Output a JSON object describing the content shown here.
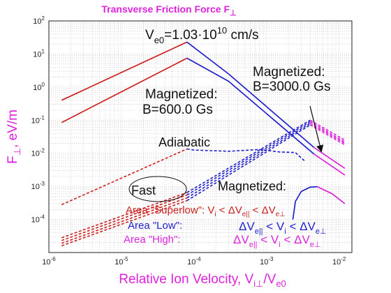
{
  "chart_data": {
    "type": "line",
    "title": {
      "main": "Transverse Friction Force F",
      "sub": "⊥"
    },
    "xlabel": {
      "main": "Relative Ion Velocity, V",
      "sub1": "i⊥",
      "mid": "/V",
      "sub2": "e0"
    },
    "ylabel": {
      "main": "F",
      "sub": "⊥",
      "rest": ", eV/m"
    },
    "x_scale": "log",
    "y_scale": "log",
    "xlim": [
      1e-06,
      0.015
    ],
    "ylim": [
      1e-05,
      100
    ],
    "grid": true,
    "x_tick_exponents": [
      -6,
      -5,
      -4,
      -3,
      -2
    ],
    "y_tick_exponents": [
      -4,
      -3,
      -2,
      -1,
      0,
      1,
      2
    ],
    "tick_base": "10",
    "colors": {
      "red": "#cc1f1f",
      "blue": "#1f1fcc",
      "magenta": "#dd22dd"
    },
    "series": [
      {
        "color": "red",
        "dash": false,
        "x": [
          1.5e-06,
          8e-05
        ],
        "y": [
          0.4,
          23
        ]
      },
      {
        "color": "red",
        "dash": false,
        "x": [
          1.5e-06,
          8e-05
        ],
        "y": [
          0.085,
          7.5
        ]
      },
      {
        "color": "blue",
        "dash": false,
        "x": [
          8e-05,
          0.0003,
          0.0045
        ],
        "y": [
          23,
          2.5,
          0.015
        ]
      },
      {
        "color": "blue",
        "dash": false,
        "x": [
          8e-05,
          0.0003,
          0.0045
        ],
        "y": [
          7.5,
          1.5,
          0.0095
        ]
      },
      {
        "color": "magenta",
        "dash": false,
        "x": [
          0.0045,
          0.012
        ],
        "y": [
          0.015,
          0.0035
        ]
      },
      {
        "color": "magenta",
        "dash": false,
        "x": [
          0.0045,
          0.012
        ],
        "y": [
          0.0095,
          0.0022
        ]
      },
      {
        "color": "red",
        "dash": true,
        "x": [
          1.5e-06,
          8e-05
        ],
        "y": [
          0.00028,
          0.0135
        ]
      },
      {
        "color": "blue",
        "dash": true,
        "x": [
          8e-05,
          0.0001,
          0.0003,
          0.0008,
          0.0015,
          0.0025,
          0.0033
        ],
        "y": [
          0.0135,
          0.0125,
          0.0115,
          0.013,
          0.011,
          0.0105,
          0.006
        ]
      },
      {
        "color": "red",
        "dash": true,
        "x": [
          1.5e-06,
          8e-05
        ],
        "y": [
          2.8e-05,
          0.00065
        ]
      },
      {
        "color": "red",
        "dash": true,
        "x": [
          1.5e-06,
          8e-05
        ],
        "y": [
          2.3e-05,
          0.00055
        ]
      },
      {
        "color": "red",
        "dash": true,
        "x": [
          1.5e-06,
          8e-05
        ],
        "y": [
          1.9e-05,
          0.00045
        ]
      },
      {
        "color": "red",
        "dash": true,
        "x": [
          1.5e-06,
          8e-05
        ],
        "y": [
          1.6e-05,
          0.00037
        ]
      },
      {
        "color": "blue",
        "dash": true,
        "x": [
          8e-05,
          0.004
        ],
        "y": [
          0.00065,
          0.1
        ]
      },
      {
        "color": "blue",
        "dash": true,
        "x": [
          8e-05,
          0.004
        ],
        "y": [
          0.00055,
          0.09
        ]
      },
      {
        "color": "blue",
        "dash": true,
        "x": [
          8e-05,
          0.004
        ],
        "y": [
          0.00045,
          0.08
        ]
      },
      {
        "color": "blue",
        "dash": true,
        "x": [
          8e-05,
          0.004
        ],
        "y": [
          0.00037,
          0.072
        ]
      },
      {
        "color": "magenta",
        "dash": true,
        "x": [
          0.004,
          0.012
        ],
        "y": [
          0.1,
          0.025
        ]
      },
      {
        "color": "magenta",
        "dash": true,
        "x": [
          0.004,
          0.012
        ],
        "y": [
          0.09,
          0.022
        ]
      },
      {
        "color": "magenta",
        "dash": true,
        "x": [
          0.004,
          0.012
        ],
        "y": [
          0.08,
          0.02
        ]
      },
      {
        "color": "magenta",
        "dash": true,
        "x": [
          0.004,
          0.012
        ],
        "y": [
          0.072,
          0.018
        ]
      },
      {
        "color": "blue",
        "dash": false,
        "x": [
          0.0023,
          0.0025,
          0.003,
          0.004,
          0.005
        ],
        "y": [
          0.0001,
          0.00035,
          0.0007,
          0.00095,
          0.00098
        ]
      },
      {
        "color": "magenta",
        "dash": false,
        "x": [
          0.005,
          0.008,
          0.012
        ],
        "y": [
          0.00098,
          0.0006,
          0.0003
        ]
      }
    ],
    "annotations": {
      "ve0": {
        "main": "V",
        "sub": "e0",
        "val": "=1.03·10",
        "exp": "10",
        "unit": " cm/s"
      },
      "mag3000_l1": "Magnetized:",
      "mag3000_l2": "B=3000.0 Gs",
      "mag600_l1": "Magnetized:",
      "mag600_l2": "B=600.0 Gs",
      "adiabatic": "Adiabatic",
      "fast": "Fast",
      "magnetized_low": "Magnetized:",
      "area_superlow": {
        "label": "Area \"Superlow\": V",
        "s1": "i",
        "lt1": " < ΔV",
        "s2": "e||",
        "lt2": " < ΔV",
        "s3": "e⊥"
      },
      "area_low": {
        "label": "Area \"Low\":",
        "dv": "ΔV",
        "s1": "e||",
        "lt1": " < V",
        "s2": "i",
        "lt2": " < ΔV",
        "s3": "e⊥"
      },
      "area_high": {
        "label": "Area \"High\":",
        "dv": "ΔV",
        "s1": "e||",
        "lt1": " < V",
        "s2": "i",
        "lt2": " < ΔV",
        "s3": "e⊥"
      }
    }
  }
}
